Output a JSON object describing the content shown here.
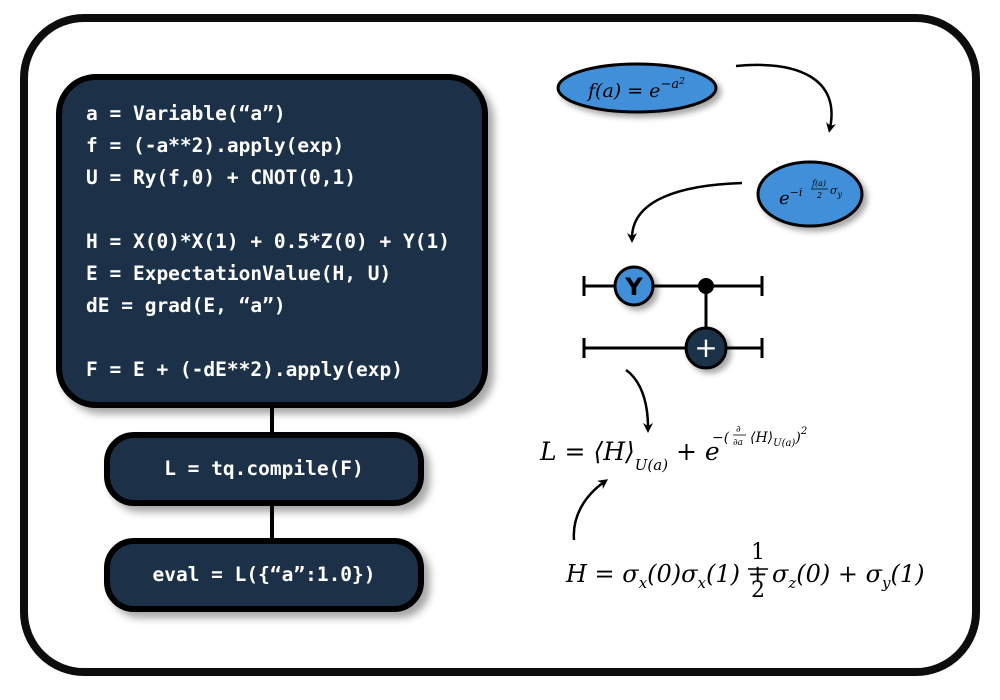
{
  "code_block": {
    "lines": [
      "a = Variable(“a”)",
      "f = (-a**2).apply(exp)",
      "U = Ry(f,0) + CNOT(0,1)",
      "H = X(0)*X(1) + 0.5*Z(0) + Y(1)",
      "E = ExpectationValue(H, U)",
      "dE = grad(E, “a”)",
      "F = E + (-dE**2).apply(exp)"
    ]
  },
  "compile_step": "L = tq.compile(F)",
  "eval_step": "eval = L({“a”:1.0})",
  "math": {
    "function_label": "f(a) = e^{-a^2}",
    "rotation_label": "e^{-i \\frac{f(a)}{2} \\sigma_y}",
    "loss_label": "L = ⟨H⟩_{U(a)} + e^{-(\\frac{\\partial}{\\partial a}⟨H⟩_{U(a)})^2}",
    "hamiltonian_label": "H = σ_x(0)σ_x(1) + \\frac{1}{2}σ_z(0) + σ_y(1)"
  },
  "circuit": {
    "gate_label": "Y",
    "target_symbol": "+"
  },
  "colors": {
    "code_bg": "#1c3148",
    "ellipse_fill": "#3f8fd8",
    "border": "#000000"
  }
}
